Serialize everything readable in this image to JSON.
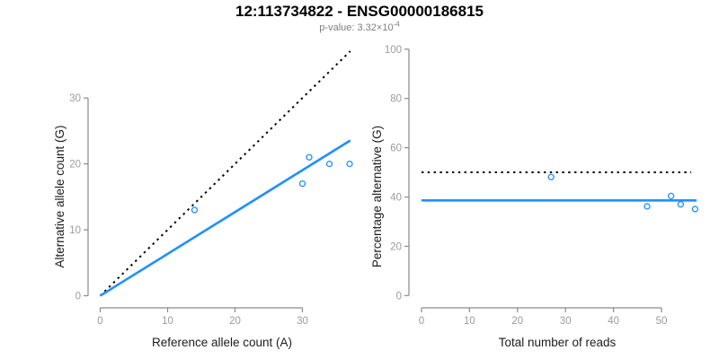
{
  "header": {
    "title": "12:113734822 - ENSG00000186815",
    "subtitle_base": "p-value: 3.32×10",
    "subtitle_exponent": "-4"
  },
  "colors": {
    "accent_blue": "#1E90FF",
    "line_black": "#000000",
    "axis_gray": "#8a8a8a",
    "tick_label_gray": "#9b9b9b",
    "axis_title_black": "#1c1c1c",
    "subtitle_gray": "#7d7d7d",
    "background": "#ffffff"
  },
  "chart_data": [
    {
      "type": "scatter",
      "name": "allele-counts",
      "title": "12:113734822 - ENSG00000186815",
      "subtitle": "p-value: 3.32×10^-4",
      "xlabel": "Reference allele count (A)",
      "ylabel": "Alternative allele count (G)",
      "xlim": [
        0,
        37.2
      ],
      "ylim": [
        0,
        37.2
      ],
      "xticks": [
        0,
        10,
        20,
        30
      ],
      "yticks": [
        0,
        10,
        20,
        30
      ],
      "grid": false,
      "legend": "none",
      "marker": "open-circle",
      "points": [
        {
          "x": 14,
          "y": 13
        },
        {
          "x": 30,
          "y": 17
        },
        {
          "x": 31,
          "y": 21
        },
        {
          "x": 34,
          "y": 20
        },
        {
          "x": 37,
          "y": 20
        }
      ],
      "lines": [
        {
          "name": "identity-line",
          "style": "dotted",
          "color": "#000000",
          "width": 2,
          "x1": 0,
          "y1": 0,
          "x2": 37.1,
          "y2": 37.1
        },
        {
          "name": "fit-line",
          "style": "solid",
          "color": "#1E90FF",
          "width": 2.6,
          "x1": 0,
          "y1": 0,
          "x2": 37.1,
          "y2": 23.55
        }
      ]
    },
    {
      "type": "scatter",
      "name": "percentage-vs-reads",
      "xlabel": "Total number of reads",
      "ylabel": "Percentage alternative (G)",
      "xlim": [
        0,
        57.3
      ],
      "ylim": [
        0,
        100
      ],
      "xticks": [
        0,
        10,
        20,
        30,
        40,
        50
      ],
      "yticks": [
        0,
        20,
        40,
        60,
        80,
        100
      ],
      "grid": false,
      "legend": "none",
      "marker": "open-circle",
      "points": [
        {
          "x": 27,
          "y": 48.1
        },
        {
          "x": 47,
          "y": 36.2
        },
        {
          "x": 52,
          "y": 40.4
        },
        {
          "x": 54,
          "y": 37.0
        },
        {
          "x": 57,
          "y": 35.1
        }
      ],
      "lines": [
        {
          "name": "fifty-percent-line",
          "style": "dotted",
          "color": "#000000",
          "width": 2,
          "x1": 0,
          "y1": 50,
          "x2": 56.2,
          "y2": 50
        },
        {
          "name": "mean-percentage-line",
          "style": "solid",
          "color": "#1E90FF",
          "width": 2.6,
          "x1": 0,
          "y1": 38.6,
          "x2": 57.3,
          "y2": 38.6
        }
      ]
    }
  ]
}
